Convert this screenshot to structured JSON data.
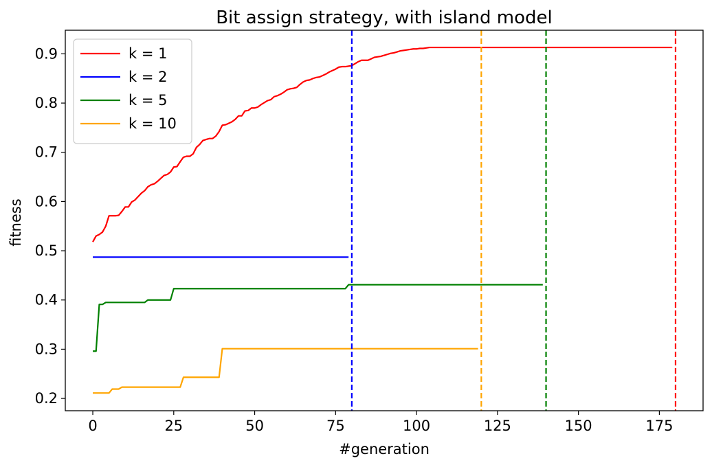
{
  "chart_data": {
    "type": "line",
    "title": "Bit assign strategy, with island model",
    "xlabel": "#generation",
    "ylabel": "fitness",
    "xlim": [
      -8.5,
      188.5
    ],
    "ylim": [
      0.175,
      0.948
    ],
    "xticks": [
      0,
      25,
      50,
      75,
      100,
      125,
      150,
      175
    ],
    "yticks": [
      0.2,
      0.3,
      0.4,
      0.5,
      0.6,
      0.7,
      0.8,
      0.9
    ],
    "xtick_labels": [
      "0",
      "25",
      "50",
      "75",
      "100",
      "125",
      "150",
      "175"
    ],
    "ytick_labels": [
      "0.2",
      "0.3",
      "0.4",
      "0.5",
      "0.6",
      "0.7",
      "0.8",
      "0.9"
    ],
    "grid": false,
    "legend_position": "upper-left",
    "series": [
      {
        "name": "k = 1",
        "color": "#ff0000",
        "points": [
          [
            0,
            0.518
          ],
          [
            1,
            0.53
          ],
          [
            2,
            0.533
          ],
          [
            3,
            0.538
          ],
          [
            4,
            0.55
          ],
          [
            5,
            0.571
          ],
          [
            6,
            0.571
          ],
          [
            7,
            0.571
          ],
          [
            8,
            0.572
          ],
          [
            9,
            0.58
          ],
          [
            10,
            0.589
          ],
          [
            11,
            0.589
          ],
          [
            12,
            0.599
          ],
          [
            13,
            0.603
          ],
          [
            14,
            0.61
          ],
          [
            15,
            0.617
          ],
          [
            16,
            0.622
          ],
          [
            17,
            0.63
          ],
          [
            18,
            0.634
          ],
          [
            19,
            0.636
          ],
          [
            20,
            0.641
          ],
          [
            21,
            0.647
          ],
          [
            22,
            0.653
          ],
          [
            23,
            0.655
          ],
          [
            24,
            0.66
          ],
          [
            25,
            0.67
          ],
          [
            26,
            0.671
          ],
          [
            27,
            0.681
          ],
          [
            28,
            0.69
          ],
          [
            29,
            0.692
          ],
          [
            30,
            0.692
          ],
          [
            31,
            0.697
          ],
          [
            32,
            0.71
          ],
          [
            33,
            0.716
          ],
          [
            34,
            0.724
          ],
          [
            35,
            0.726
          ],
          [
            36,
            0.728
          ],
          [
            37,
            0.728
          ],
          [
            38,
            0.733
          ],
          [
            39,
            0.742
          ],
          [
            40,
            0.755
          ],
          [
            41,
            0.756
          ],
          [
            42,
            0.759
          ],
          [
            43,
            0.762
          ],
          [
            44,
            0.767
          ],
          [
            45,
            0.774
          ],
          [
            46,
            0.774
          ],
          [
            47,
            0.784
          ],
          [
            48,
            0.785
          ],
          [
            49,
            0.79
          ],
          [
            50,
            0.79
          ],
          [
            51,
            0.792
          ],
          [
            52,
            0.797
          ],
          [
            53,
            0.801
          ],
          [
            54,
            0.805
          ],
          [
            55,
            0.807
          ],
          [
            56,
            0.813
          ],
          [
            57,
            0.815
          ],
          [
            58,
            0.818
          ],
          [
            59,
            0.822
          ],
          [
            60,
            0.827
          ],
          [
            61,
            0.829
          ],
          [
            62,
            0.83
          ],
          [
            63,
            0.832
          ],
          [
            64,
            0.838
          ],
          [
            65,
            0.843
          ],
          [
            66,
            0.846
          ],
          [
            67,
            0.847
          ],
          [
            68,
            0.85
          ],
          [
            69,
            0.852
          ],
          [
            70,
            0.853
          ],
          [
            71,
            0.856
          ],
          [
            72,
            0.859
          ],
          [
            73,
            0.863
          ],
          [
            74,
            0.866
          ],
          [
            75,
            0.869
          ],
          [
            76,
            0.873
          ],
          [
            77,
            0.874
          ],
          [
            78,
            0.874
          ],
          [
            79,
            0.875
          ],
          [
            80,
            0.876
          ],
          [
            81,
            0.88
          ],
          [
            82,
            0.884
          ],
          [
            83,
            0.887
          ],
          [
            84,
            0.887
          ],
          [
            85,
            0.887
          ],
          [
            86,
            0.89
          ],
          [
            87,
            0.893
          ],
          [
            88,
            0.894
          ],
          [
            89,
            0.895
          ],
          [
            90,
            0.897
          ],
          [
            91,
            0.899
          ],
          [
            92,
            0.901
          ],
          [
            93,
            0.902
          ],
          [
            94,
            0.904
          ],
          [
            95,
            0.906
          ],
          [
            96,
            0.907
          ],
          [
            97,
            0.908
          ],
          [
            98,
            0.909
          ],
          [
            99,
            0.91
          ],
          [
            100,
            0.91
          ],
          [
            101,
            0.911
          ],
          [
            102,
            0.911
          ],
          [
            103,
            0.912
          ],
          [
            104,
            0.913
          ],
          [
            179,
            0.913
          ]
        ]
      },
      {
        "name": "k = 2",
        "color": "#0000ff",
        "points": [
          [
            0,
            0.487
          ],
          [
            79,
            0.487
          ]
        ]
      },
      {
        "name": "k = 5",
        "color": "#008000",
        "points": [
          [
            0,
            0.296
          ],
          [
            1,
            0.296
          ],
          [
            2,
            0.391
          ],
          [
            3,
            0.391
          ],
          [
            4,
            0.395
          ],
          [
            16,
            0.395
          ],
          [
            17,
            0.4
          ],
          [
            24,
            0.4
          ],
          [
            25,
            0.423
          ],
          [
            78,
            0.423
          ],
          [
            79,
            0.431
          ],
          [
            139,
            0.431
          ]
        ]
      },
      {
        "name": "k = 10",
        "color": "#ffa500",
        "points": [
          [
            0,
            0.211
          ],
          [
            5,
            0.211
          ],
          [
            6,
            0.219
          ],
          [
            8,
            0.219
          ],
          [
            9,
            0.223
          ],
          [
            27,
            0.223
          ],
          [
            28,
            0.243
          ],
          [
            39,
            0.243
          ],
          [
            40,
            0.301
          ],
          [
            119,
            0.301
          ]
        ]
      }
    ],
    "vlines": [
      {
        "x": 80,
        "color": "#0000ff",
        "style": "dashed"
      },
      {
        "x": 120,
        "color": "#ffa500",
        "style": "dashed"
      },
      {
        "x": 140,
        "color": "#008000",
        "style": "dashed"
      },
      {
        "x": 180,
        "color": "#ff0000",
        "style": "dashed"
      }
    ]
  }
}
